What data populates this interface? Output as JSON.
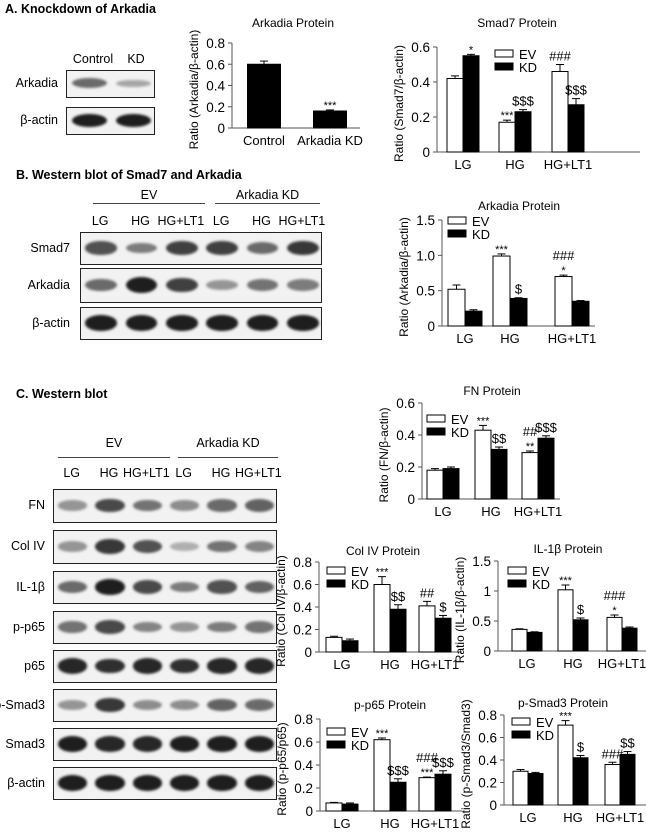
{
  "panels": {
    "A": {
      "title": "A. Knockdown of Arkadia"
    },
    "B": {
      "title": "B. Western blot of Smad7 and Arkadia"
    },
    "C": {
      "title": "C. Western blot"
    }
  },
  "blots": {
    "A": {
      "lanes": [
        "Control",
        "KD"
      ],
      "rows": [
        {
          "label": "Arkadia",
          "intensities": [
            0.55,
            0.2
          ]
        },
        {
          "label": "β-actin",
          "intensities": [
            1.0,
            1.0
          ]
        }
      ]
    },
    "B": {
      "groups": [
        "EV",
        "Arkadia KD"
      ],
      "lanes": [
        "LG",
        "HG",
        "HG+LT1",
        "LG",
        "HG",
        "HG+LT1"
      ],
      "rows": [
        {
          "label": "Smad7",
          "intensities": [
            0.7,
            0.45,
            0.8,
            0.8,
            0.55,
            0.85
          ]
        },
        {
          "label": "Arkadia",
          "intensities": [
            0.55,
            1.0,
            0.8,
            0.3,
            0.5,
            0.45
          ]
        },
        {
          "label": "β-actin",
          "intensities": [
            1.0,
            1.0,
            1.0,
            1.0,
            1.0,
            1.0
          ]
        }
      ]
    },
    "C": {
      "groups": [
        "EV",
        "Arkadia KD"
      ],
      "lanes": [
        "LG",
        "HG",
        "HG+LT1",
        "LG",
        "HG",
        "HG+LT1"
      ],
      "rows": [
        {
          "label": "FN",
          "intensities": [
            0.3,
            0.75,
            0.5,
            0.35,
            0.55,
            0.6
          ]
        },
        {
          "label": "Col IV",
          "intensities": [
            0.3,
            0.85,
            0.7,
            0.15,
            0.5,
            0.4
          ]
        },
        {
          "label": "IL-1β",
          "intensities": [
            0.55,
            1.0,
            0.75,
            0.45,
            0.7,
            0.6
          ]
        },
        {
          "label": "p-p65",
          "intensities": [
            0.5,
            0.75,
            0.4,
            0.3,
            0.45,
            0.5
          ]
        },
        {
          "label": "p65",
          "intensities": [
            0.95,
            0.9,
            0.95,
            0.9,
            0.95,
            0.95
          ]
        },
        {
          "label": "p-Smad3",
          "intensities": [
            0.3,
            0.85,
            0.35,
            0.35,
            0.6,
            0.55
          ]
        },
        {
          "label": "Smad3",
          "intensities": [
            1.0,
            0.95,
            0.95,
            1.0,
            1.0,
            1.0
          ]
        },
        {
          "label": "β-actin",
          "intensities": [
            1.0,
            1.0,
            1.0,
            1.0,
            1.0,
            1.0
          ]
        }
      ]
    }
  },
  "colors": {
    "ev": "#ffffff",
    "kd": "#000000",
    "axis": "#555555"
  },
  "chart_data": [
    {
      "id": "arkadiaA",
      "type": "bar",
      "title": "Arkadia Protein",
      "ylabel": "Ratio (Arkadia/β-actin)",
      "xlabel": "",
      "categories": [
        "Control",
        "Arkadia KD"
      ],
      "ylim": [
        0,
        0.8
      ],
      "yticks": [
        0,
        0.2,
        0.4,
        0.6,
        0.8
      ],
      "yticklabels": [
        "0",
        "0.2",
        "0.4",
        "0.6",
        "0.8"
      ],
      "series": [
        {
          "name": "",
          "values": [
            0.6,
            0.16
          ],
          "errors": [
            0.03,
            0.01
          ],
          "annotations": [
            [],
            [
              "***"
            ]
          ]
        }
      ],
      "legend": []
    },
    {
      "id": "smad7",
      "type": "bar",
      "title": "Smad7 Protein",
      "ylabel": "Ratio (Smad7/β-actin)",
      "xlabel": "",
      "categories": [
        "LG",
        "HG",
        "HG+LT1"
      ],
      "ylim": [
        0,
        0.6
      ],
      "yticks": [
        0,
        0.2,
        0.4,
        0.6
      ],
      "yticklabels": [
        "0",
        "0.2",
        "0.4",
        "0.6"
      ],
      "series": [
        {
          "name": "EV",
          "values": [
            0.42,
            0.17,
            0.46
          ],
          "errors": [
            0.015,
            0.012,
            0.04
          ],
          "annotations": [
            [],
            [
              "***"
            ],
            [
              "###"
            ]
          ]
        },
        {
          "name": "KD",
          "values": [
            0.55,
            0.23,
            0.27
          ],
          "errors": [
            0.008,
            0.012,
            0.035
          ],
          "annotations": [
            [
              "*"
            ],
            [
              "$$$"
            ],
            [
              "$$$"
            ]
          ]
        }
      ],
      "legend": [
        "EV",
        "KD"
      ],
      "legend_position": "top-center"
    },
    {
      "id": "arkadiaB",
      "type": "bar",
      "title": "Arkadia Protein",
      "ylabel": "Ratio (Arkadia/β-actin)",
      "xlabel": "",
      "categories": [
        "LG",
        "HG",
        "HG+LT1"
      ],
      "ylim": [
        0,
        1.5
      ],
      "yticks": [
        0,
        0.5,
        1.0,
        1.5
      ],
      "yticklabels": [
        "0",
        "0.5",
        "1.0",
        "1.5"
      ],
      "series": [
        {
          "name": "EV",
          "values": [
            0.52,
            0.99,
            0.7
          ],
          "errors": [
            0.06,
            0.03,
            0.02
          ],
          "annotations": [
            [],
            [
              "***"
            ],
            [
              "###",
              "*"
            ]
          ]
        },
        {
          "name": "KD",
          "values": [
            0.21,
            0.39,
            0.35
          ],
          "errors": [
            0.02,
            0.01,
            0.01
          ],
          "annotations": [
            [],
            [
              "$"
            ],
            []
          ]
        }
      ],
      "legend": [
        "EV",
        "KD"
      ],
      "legend_position": "top-left"
    },
    {
      "id": "fn",
      "type": "bar",
      "title": "FN Protein",
      "ylabel": "Ratio (FN/β-actin)",
      "xlabel": "",
      "categories": [
        "LG",
        "HG",
        "HG+LT1"
      ],
      "ylim": [
        0,
        0.6
      ],
      "yticks": [
        0,
        0.2,
        0.4,
        0.6
      ],
      "yticklabels": [
        "0",
        "0.2",
        "0.4",
        "0.6"
      ],
      "series": [
        {
          "name": "EV",
          "values": [
            0.18,
            0.43,
            0.29
          ],
          "errors": [
            0.01,
            0.03,
            0.01
          ],
          "annotations": [
            [],
            [
              "***"
            ],
            [
              "##",
              "**"
            ]
          ]
        },
        {
          "name": "KD",
          "values": [
            0.19,
            0.31,
            0.38
          ],
          "errors": [
            0.01,
            0.015,
            0.015
          ],
          "annotations": [
            [],
            [
              "$$"
            ],
            [
              "$$$"
            ]
          ]
        }
      ],
      "legend": [
        "EV",
        "KD"
      ],
      "legend_position": "top-left"
    },
    {
      "id": "col4",
      "type": "bar",
      "title": "Col IV Protein",
      "ylabel": "Ratio (Col IV/β-actin)",
      "xlabel": "",
      "categories": [
        "LG",
        "HG",
        "HG+LT1"
      ],
      "ylim": [
        0,
        0.8
      ],
      "yticks": [
        0,
        0.2,
        0.4,
        0.6,
        0.8
      ],
      "yticklabels": [
        "0",
        "0.2",
        "0.4",
        "0.6",
        "0.8"
      ],
      "series": [
        {
          "name": "EV",
          "values": [
            0.13,
            0.6,
            0.41
          ],
          "errors": [
            0.01,
            0.07,
            0.04
          ],
          "annotations": [
            [],
            [
              "***"
            ],
            [
              "##"
            ]
          ]
        },
        {
          "name": "KD",
          "values": [
            0.1,
            0.38,
            0.3
          ],
          "errors": [
            0.015,
            0.04,
            0.025
          ],
          "annotations": [
            [],
            [
              "$$"
            ],
            [
              "$"
            ]
          ]
        }
      ],
      "legend": [
        "EV",
        "KD"
      ],
      "legend_position": "top-left"
    },
    {
      "id": "il1b",
      "type": "bar",
      "title": "IL-1β Protein",
      "ylabel": "Ratio (IL-1β/β-actin)",
      "xlabel": "",
      "categories": [
        "LG",
        "HG",
        "HG+LT1"
      ],
      "ylim": [
        0,
        1.5
      ],
      "yticks": [
        0,
        0.5,
        1,
        1.5
      ],
      "yticklabels": [
        "0",
        "0.5",
        "1",
        "1.5"
      ],
      "series": [
        {
          "name": "EV",
          "values": [
            0.36,
            1.02,
            0.56
          ],
          "errors": [
            0.01,
            0.08,
            0.04
          ],
          "annotations": [
            [],
            [
              "***"
            ],
            [
              "###",
              "*"
            ]
          ]
        },
        {
          "name": "KD",
          "values": [
            0.31,
            0.52,
            0.38
          ],
          "errors": [
            0.01,
            0.03,
            0.02
          ],
          "annotations": [
            [],
            [
              "$"
            ],
            []
          ]
        }
      ],
      "legend": [
        "EV",
        "KD"
      ],
      "legend_position": "top-left"
    },
    {
      "id": "pp65",
      "type": "bar",
      "title": "p-p65 Protein",
      "ylabel": "Ratio (p-p65/p65)",
      "xlabel": "",
      "categories": [
        "LG",
        "HG",
        "HG+LT1"
      ],
      "ylim": [
        0,
        0.8
      ],
      "yticks": [
        0,
        0.2,
        0.4,
        0.6,
        0.8
      ],
      "yticklabels": [
        "0",
        "0.2",
        "0.4",
        "0.6",
        "0.8"
      ],
      "series": [
        {
          "name": "EV",
          "values": [
            0.07,
            0.62,
            0.29
          ],
          "errors": [
            0.005,
            0.015,
            0.005
          ],
          "annotations": [
            [],
            [
              "***"
            ],
            [
              "###",
              "***"
            ]
          ]
        },
        {
          "name": "KD",
          "values": [
            0.06,
            0.25,
            0.32
          ],
          "errors": [
            0.01,
            0.03,
            0.03
          ],
          "annotations": [
            [],
            [
              "$$$"
            ],
            [
              "$$$"
            ]
          ]
        }
      ],
      "legend": [
        "EV",
        "KD"
      ],
      "legend_position": "top-left"
    },
    {
      "id": "psmad3",
      "type": "bar",
      "title": "p-Smad3 Protein",
      "ylabel": "Ratio (p-Smad3/Smad3)",
      "xlabel": "",
      "categories": [
        "LG",
        "HG",
        "HG+LT1"
      ],
      "ylim": [
        0,
        0.8
      ],
      "yticks": [
        0,
        0.2,
        0.4,
        0.6,
        0.8
      ],
      "yticklabels": [
        "0",
        "0.2",
        "0.4",
        "0.6",
        "0.8"
      ],
      "series": [
        {
          "name": "EV",
          "values": [
            0.3,
            0.71,
            0.36
          ],
          "errors": [
            0.015,
            0.04,
            0.02
          ],
          "annotations": [
            [],
            [
              "***"
            ],
            [
              "###"
            ]
          ]
        },
        {
          "name": "KD",
          "values": [
            0.28,
            0.42,
            0.45
          ],
          "errors": [
            0.01,
            0.02,
            0.025
          ],
          "annotations": [
            [],
            [
              "$"
            ],
            [
              "$$"
            ]
          ]
        }
      ],
      "legend": [
        "EV",
        "KD"
      ],
      "legend_position": "top-left"
    }
  ]
}
